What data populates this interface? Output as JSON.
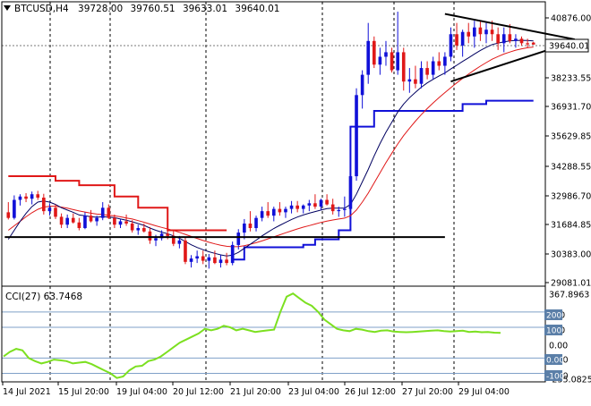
{
  "header": {
    "symbol": "BTCUSD,H4",
    "open": "39728.00",
    "high": "39760.51",
    "low": "39633.01",
    "close": "39640.01"
  },
  "colors": {
    "background": "#ffffff",
    "bull_candle": "#1010d8",
    "bear_candle": "#e01818",
    "ma_fast": "#000060",
    "ma_slow": "#e01818",
    "kijun_red": "#e01818",
    "kijun_blue": "#1010d8",
    "cci_line": "#7ce020",
    "trendline": "#000000",
    "grid": "#000000",
    "price_tag_bg": "#ffffff"
  },
  "chart_data": [
    {
      "type": "candlestick",
      "ylim": [
        29081.01,
        41300
      ],
      "yticks": [
        "40876.00",
        "39640.01",
        "38233.55",
        "36931.70",
        "35629.85",
        "34288.55",
        "32986.70",
        "31684.85",
        "30383.00",
        "29081.01"
      ],
      "current_price": "39640.01",
      "xticks": [
        "14 Jul 2021",
        "15 Jul 20:00",
        "19 Jul 04:00",
        "20 Jul 12:00",
        "21 Jul 20:00",
        "23 Jul 04:00",
        "26 Jul 12:00",
        "27 Jul 20:00",
        "29 Jul 04:00"
      ],
      "candles": [
        [
          32200,
          32650,
          31880,
          31950
        ],
        [
          31950,
          32950,
          31880,
          32750
        ],
        [
          32750,
          33000,
          32500,
          32900
        ],
        [
          32900,
          33050,
          32650,
          32800
        ],
        [
          32800,
          33120,
          32550,
          33000
        ],
        [
          33000,
          33150,
          32750,
          32850
        ],
        [
          32850,
          33020,
          32100,
          32250
        ],
        [
          32250,
          32600,
          32050,
          32400
        ],
        [
          32400,
          32550,
          31900,
          32000
        ],
        [
          32000,
          32150,
          31500,
          31650
        ],
        [
          31650,
          32100,
          31500,
          31950
        ],
        [
          31950,
          32150,
          31700,
          31750
        ],
        [
          31750,
          31950,
          31400,
          31500
        ],
        [
          31500,
          32200,
          31450,
          32050
        ],
        [
          32050,
          32300,
          31750,
          31800
        ],
        [
          31800,
          32050,
          31600,
          31950
        ],
        [
          31950,
          32650,
          31850,
          32400
        ],
        [
          32400,
          32550,
          31900,
          31950
        ],
        [
          31950,
          32100,
          31500,
          31650
        ],
        [
          31650,
          31900,
          31500,
          31800
        ],
        [
          31800,
          32100,
          31600,
          31700
        ],
        [
          31700,
          31850,
          31300,
          31400
        ],
        [
          31400,
          31650,
          31200,
          31500
        ],
        [
          31500,
          31700,
          31300,
          31350
        ],
        [
          31350,
          31550,
          30800,
          30950
        ],
        [
          30950,
          31200,
          30700,
          31050
        ],
        [
          31050,
          31400,
          30950,
          31250
        ],
        [
          31250,
          31600,
          31000,
          31150
        ],
        [
          31150,
          31400,
          30700,
          30800
        ],
        [
          30800,
          31150,
          30600,
          30950
        ],
        [
          30950,
          31100,
          29900,
          30000
        ],
        [
          30000,
          30300,
          29750,
          30150
        ],
        [
          30150,
          30500,
          29950,
          30250
        ],
        [
          30250,
          30500,
          29900,
          30050
        ],
        [
          30050,
          30350,
          29700,
          30200
        ],
        [
          30200,
          30500,
          29900,
          29950
        ],
        [
          29950,
          30300,
          29750,
          30100
        ],
        [
          30100,
          30400,
          29850,
          29950
        ],
        [
          29950,
          30900,
          29850,
          30750
        ],
        [
          30750,
          31450,
          30550,
          31300
        ],
        [
          31300,
          31900,
          31000,
          31700
        ],
        [
          31700,
          32250,
          31350,
          31500
        ],
        [
          31500,
          32050,
          31350,
          31950
        ],
        [
          31950,
          32450,
          31800,
          32250
        ],
        [
          32250,
          32650,
          31950,
          32050
        ],
        [
          32050,
          32450,
          31800,
          32350
        ],
        [
          32350,
          32650,
          32050,
          32200
        ],
        [
          32200,
          32450,
          31950,
          32350
        ],
        [
          32350,
          32700,
          32150,
          32500
        ],
        [
          32500,
          32700,
          32200,
          32350
        ],
        [
          32350,
          32550,
          32150,
          32500
        ],
        [
          32500,
          32750,
          32250,
          32600
        ],
        [
          32600,
          33000,
          32350,
          32450
        ],
        [
          32450,
          32800,
          32300,
          32750
        ],
        [
          32750,
          33000,
          32500,
          32550
        ],
        [
          32550,
          32800,
          32100,
          32250
        ],
        [
          32250,
          32450,
          32000,
          32300
        ],
        [
          32300,
          32900,
          32000,
          32350
        ],
        [
          32350,
          34000,
          32200,
          33800
        ],
        [
          33800,
          37700,
          33600,
          37400
        ],
        [
          37400,
          38500,
          36800,
          38300
        ],
        [
          38300,
          40600,
          37900,
          39800
        ],
        [
          39800,
          40000,
          38600,
          38750
        ],
        [
          38750,
          39500,
          38300,
          39100
        ],
        [
          39100,
          39800,
          38700,
          39300
        ],
        [
          39300,
          39500,
          38400,
          38500
        ],
        [
          38500,
          41100,
          38300,
          39300
        ],
        [
          39300,
          39500,
          37600,
          38000
        ],
        [
          38000,
          38600,
          37500,
          38100
        ],
        [
          38100,
          38700,
          37700,
          37900
        ],
        [
          37900,
          38900,
          37700,
          38600
        ],
        [
          38600,
          38900,
          38100,
          38300
        ],
        [
          38300,
          39100,
          38100,
          38900
        ],
        [
          38900,
          39300,
          38500,
          38700
        ],
        [
          38700,
          39300,
          38300,
          39100
        ],
        [
          39100,
          40400,
          38900,
          40100
        ],
        [
          40100,
          40600,
          39400,
          39600
        ],
        [
          39600,
          40300,
          39100,
          40200
        ],
        [
          40200,
          40600,
          39700,
          40000
        ],
        [
          40000,
          40700,
          39500,
          40400
        ],
        [
          40400,
          40700,
          39800,
          40100
        ],
        [
          40100,
          40600,
          39700,
          40300
        ],
        [
          40300,
          40700,
          39800,
          40100
        ],
        [
          40100,
          40400,
          39400,
          39700
        ],
        [
          39700,
          40400,
          39300,
          40100
        ],
        [
          40100,
          40550,
          39700,
          39800
        ],
        [
          39800,
          40100,
          39500,
          39900
        ],
        [
          39900,
          40000,
          39600,
          39700
        ],
        [
          39700,
          39900,
          39500,
          39650
        ],
        [
          39728,
          39760.51,
          39633.01,
          39640.01
        ]
      ],
      "ma_fast": [
        31000,
        31400,
        31800,
        32150,
        32450,
        32650,
        32700,
        32650,
        32550,
        32400,
        32300,
        32200,
        32080,
        32050,
        32000,
        31980,
        32000,
        31990,
        31960,
        31900,
        31850,
        31780,
        31700,
        31620,
        31500,
        31400,
        31320,
        31250,
        31150,
        31050,
        30900,
        30760,
        30640,
        30540,
        30450,
        30380,
        30310,
        30260,
        30300,
        30420,
        30600,
        30780,
        30960,
        31150,
        31320,
        31480,
        31620,
        31750,
        31880,
        31990,
        32080,
        32160,
        32230,
        32300,
        32360,
        32380,
        32380,
        32380,
        32550,
        33000,
        33550,
        34100,
        34700,
        35250,
        35750,
        36200,
        36650,
        37000,
        37280,
        37520,
        37750,
        37940,
        38100,
        38250,
        38380,
        38560,
        38720,
        38890,
        39050,
        39220,
        39380,
        39520,
        39640,
        39700,
        39760,
        39800,
        39820,
        39830,
        39820,
        39800
      ],
      "ma_slow": [
        31400,
        31600,
        31800,
        32000,
        32180,
        32330,
        32430,
        32470,
        32470,
        32430,
        32380,
        32320,
        32260,
        32210,
        32160,
        32120,
        32100,
        32070,
        32040,
        32000,
        31950,
        31900,
        31830,
        31760,
        31680,
        31600,
        31530,
        31460,
        31390,
        31310,
        31220,
        31130,
        31040,
        30950,
        30870,
        30800,
        30740,
        30690,
        30670,
        30680,
        30720,
        30780,
        30850,
        30930,
        31020,
        31110,
        31200,
        31290,
        31380,
        31460,
        31540,
        31610,
        31680,
        31750,
        31810,
        31860,
        31900,
        31940,
        32050,
        32300,
        32650,
        33050,
        33500,
        33950,
        34400,
        34820,
        35230,
        35600,
        35930,
        36240,
        36530,
        36800,
        37050,
        37290,
        37510,
        37730,
        37940,
        38140,
        38330,
        38510,
        38680,
        38840,
        38990,
        39110,
        39220,
        39310,
        39390,
        39450,
        39500,
        39530
      ],
      "kijun_red": [
        [
          0,
          33800
        ],
        [
          8,
          33800
        ],
        [
          8,
          33600
        ],
        [
          12,
          33600
        ],
        [
          12,
          33400
        ],
        [
          18,
          33400
        ],
        [
          18,
          32900
        ],
        [
          22,
          32900
        ],
        [
          22,
          32400
        ],
        [
          27,
          32400
        ],
        [
          27,
          31400
        ],
        [
          37,
          31400
        ]
      ],
      "kijun_blue": [
        [
          38,
          30100
        ],
        [
          40,
          30100
        ],
        [
          40,
          30650
        ],
        [
          50,
          30650
        ],
        [
          50,
          30760
        ],
        [
          52,
          30760
        ],
        [
          52,
          31000
        ],
        [
          56,
          31000
        ],
        [
          56,
          31400
        ],
        [
          58,
          31400
        ],
        [
          58,
          36000
        ],
        [
          62,
          36000
        ],
        [
          62,
          36700
        ],
        [
          77,
          36700
        ],
        [
          77,
          37000
        ],
        [
          81,
          37000
        ],
        [
          81,
          37150
        ],
        [
          89,
          37150
        ]
      ],
      "support_line": {
        "value": 31100,
        "x_from": 0,
        "x_to": 74
      },
      "triangle_upper": [
        [
          74,
          41000
        ],
        [
          96,
          39870
        ]
      ],
      "triangle_lower": [
        [
          75,
          38000
        ],
        [
          95,
          39700
        ]
      ]
    },
    {
      "type": "line",
      "name": "CCI(27) 63.7468",
      "ylim": [
        -255.0825,
        367.8963
      ],
      "yticks": [
        "367.8963",
        "200",
        "100",
        "0.00",
        "-100",
        "-200",
        "-255.0825"
      ],
      "levels": [
        200,
        100,
        -100,
        -200
      ],
      "values": [
        -90,
        -60,
        -40,
        -50,
        -100,
        -120,
        -135,
        -125,
        -110,
        -115,
        -120,
        -135,
        -130,
        -125,
        -140,
        -160,
        -180,
        -200,
        -230,
        -220,
        -180,
        -155,
        -150,
        -120,
        -110,
        -90,
        -60,
        -30,
        0,
        20,
        40,
        60,
        90,
        80,
        90,
        110,
        100,
        80,
        90,
        80,
        70,
        75,
        80,
        85,
        200,
        300,
        320,
        290,
        260,
        240,
        200,
        150,
        120,
        90,
        80,
        75,
        90,
        85,
        75,
        70,
        78,
        80,
        72,
        70,
        68,
        70,
        72,
        75,
        78,
        80,
        75,
        72,
        75,
        78,
        70,
        72,
        68,
        70,
        65,
        63.75
      ]
    }
  ]
}
